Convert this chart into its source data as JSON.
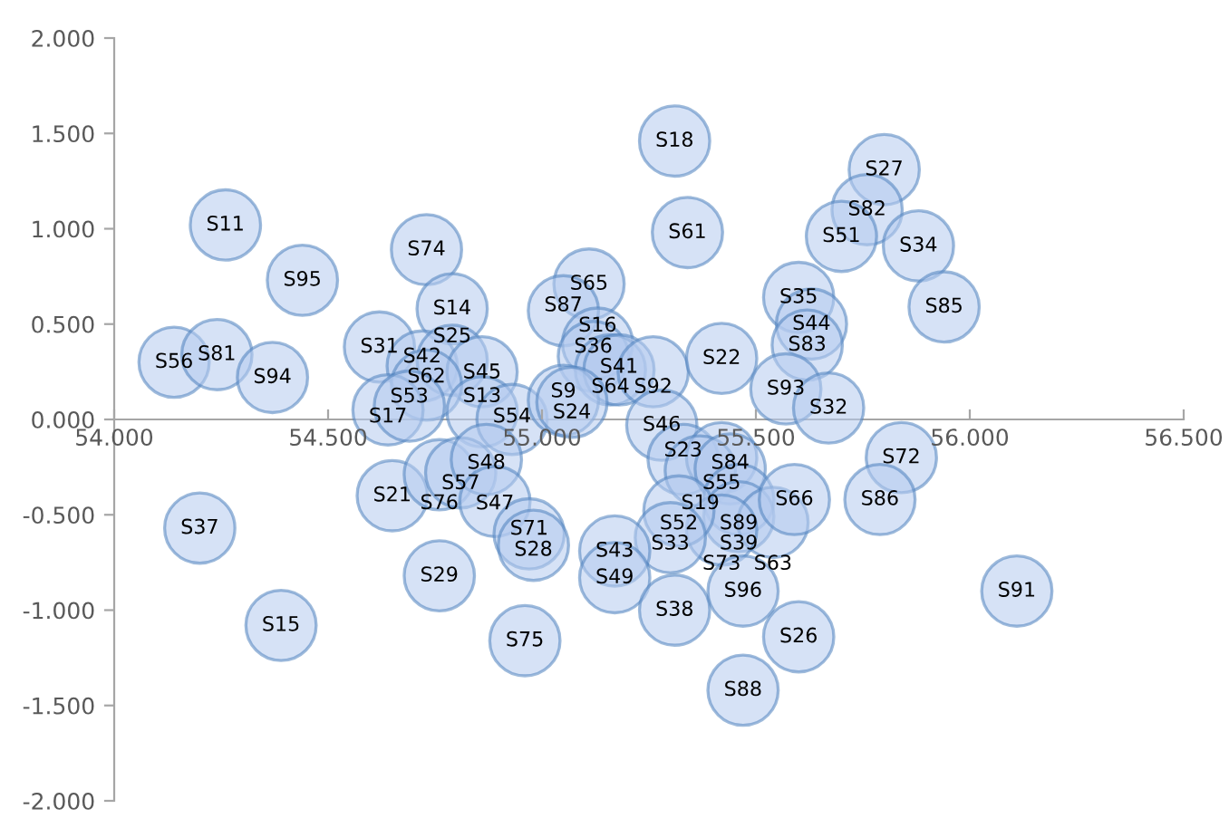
{
  "chart_data": {
    "type": "scatter",
    "color": "#b4cbee",
    "marker": "circle",
    "xlim": [
      54.0,
      56.5
    ],
    "ylim": [
      -2.0,
      2.0
    ],
    "xticks": [
      {
        "value": 54.0,
        "label": "54.000"
      },
      {
        "value": 54.5,
        "label": "54.500"
      },
      {
        "value": 55.0,
        "label": "55.000"
      },
      {
        "value": 55.5,
        "label": "55.500"
      },
      {
        "value": 56.0,
        "label": "56.000"
      },
      {
        "value": 56.5,
        "label": "56.500"
      }
    ],
    "yticks": [
      {
        "value": -2.0,
        "label": "-2.000"
      },
      {
        "value": -1.5,
        "label": "-1.500"
      },
      {
        "value": -1.0,
        "label": "-1.000"
      },
      {
        "value": -0.5,
        "label": "-0.500"
      },
      {
        "value": 0.0,
        "label": "0.000"
      },
      {
        "value": 0.5,
        "label": "0.500"
      },
      {
        "value": 1.0,
        "label": "1.000"
      },
      {
        "value": 1.5,
        "label": "1.500"
      },
      {
        "value": 2.0,
        "label": "2.000"
      }
    ],
    "x": [
      54.26,
      54.44,
      54.73,
      54.79,
      54.14,
      54.24,
      54.37,
      54.62,
      54.72,
      54.79,
      54.86,
      54.73,
      54.64,
      54.69,
      54.86,
      54.93,
      55.11,
      55.05,
      55.13,
      55.12,
      55.16,
      55.18,
      55.26,
      55.05,
      55.07,
      55.28,
      55.42,
      55.31,
      55.34,
      55.8,
      55.76,
      55.7,
      55.88,
      55.94,
      55.6,
      55.63,
      55.62,
      55.57,
      55.67,
      55.84,
      55.79,
      56.11,
      55.33,
      55.42,
      55.37,
      55.44,
      55.46,
      55.46,
      55.54,
      55.42,
      55.59,
      55.32,
      55.3,
      55.17,
      55.17,
      55.31,
      55.47,
      55.6,
      55.47,
      54.65,
      54.76,
      54.81,
      54.87,
      54.89,
      54.97,
      54.98,
      54.76,
      54.96,
      54.2,
      54.39
    ],
    "values": [
      1.02,
      0.73,
      0.89,
      0.58,
      0.3,
      0.34,
      0.22,
      0.38,
      0.28,
      0.31,
      0.25,
      0.18,
      0.05,
      0.07,
      0.04,
      0.0,
      0.71,
      0.57,
      0.4,
      0.33,
      0.26,
      0.26,
      0.25,
      0.1,
      0.09,
      -0.03,
      0.32,
      1.46,
      0.98,
      1.31,
      1.1,
      0.96,
      0.91,
      0.59,
      0.64,
      0.5,
      0.39,
      0.16,
      0.06,
      -0.2,
      -0.42,
      -0.9,
      -0.21,
      -0.2,
      -0.27,
      -0.26,
      -0.42,
      -0.51,
      -0.54,
      -0.58,
      -0.42,
      -0.48,
      -0.62,
      -0.69,
      -0.83,
      -1.0,
      -0.9,
      -1.14,
      -1.42,
      -0.4,
      -0.29,
      -0.28,
      -0.21,
      -0.43,
      -0.6,
      -0.66,
      -0.82,
      -1.16,
      -0.57,
      -1.08
    ],
    "value_labels": [
      "S11",
      "S95",
      "S74",
      "S14",
      "S56",
      "S81",
      "S94",
      "S31",
      "S42",
      "S25",
      "S45",
      "S62",
      "S17",
      "S53",
      "S13",
      "S54",
      "S65",
      "S87",
      "S16",
      "S36",
      "S64",
      "S41",
      "S92",
      "S9",
      "S24",
      "S46",
      "S22",
      "S18",
      "S61",
      "S27",
      "S82",
      "S51",
      "S34",
      "S85",
      "S35",
      "S44",
      "S83",
      "S93",
      "S32",
      "S72",
      "S86",
      "S91",
      "S23",
      "S55",
      "S19",
      "S84",
      "S89",
      "S39",
      "S63",
      "S73",
      "S66",
      "S52",
      "S33",
      "S43",
      "S49",
      "S38",
      "S96",
      "S26",
      "S88",
      "S21",
      "S76",
      "S57",
      "S48",
      "S47",
      "S71",
      "S28",
      "S29",
      "S75",
      "S37",
      "S15"
    ]
  }
}
